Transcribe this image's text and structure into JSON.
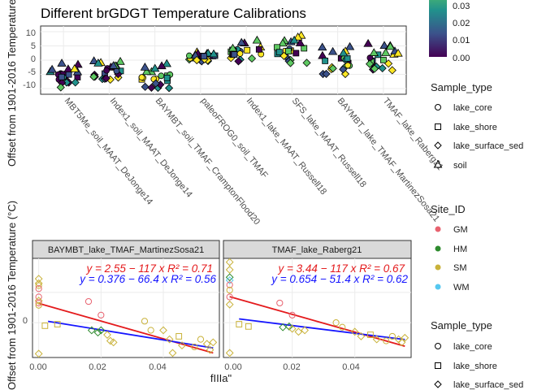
{
  "top_chart": {
    "title": "Different brGDGT Temperature Calibrations",
    "ylabel": "Offset from 1901-2016 Temperature (°C)",
    "yticks": [
      "10",
      "5",
      "0",
      "-5",
      "-10"
    ],
    "categories": [
      "MBT5Me_soil_MAAT_DeJonge14",
      "Index1_soil_MAAT_DeJonge14",
      "BAYMBT_soil_TMAF_CramptonFlood20",
      "paleoFROG0_soil_TMAF",
      "Index1_lake_MAAT_Russell18",
      "SFS_lake_MAAT_Russell18",
      "BAYMBT_lake_TMAF_MartinezSosa21",
      "TMAF_lake_Raberg21"
    ],
    "colorbar_ticks": [
      "0.03",
      "0.02",
      "0.01",
      "0.00"
    ]
  },
  "legend_sample_type_top": {
    "title": "Sample_type",
    "items": [
      "lake_core",
      "lake_shore",
      "lake_surface_sed",
      "soil"
    ]
  },
  "legend_site": {
    "title": "Site_ID",
    "items": [
      {
        "label": "GM",
        "color": "#e8626f"
      },
      {
        "label": "HM",
        "color": "#2e8b2e"
      },
      {
        "label": "SM",
        "color": "#c9b23a"
      },
      {
        "label": "WM",
        "color": "#56c8f0"
      }
    ]
  },
  "legend_sample_type_bottom": {
    "title": "Sample_type",
    "items": [
      "lake_core",
      "lake_shore",
      "lake_surface_sed"
    ]
  },
  "bottom_chart": {
    "ylabel": "Offset from 1901-2016 Temperature (°C)",
    "xlabel": "fIIIa\"",
    "panels": [
      {
        "strip": "BAYMBT_lake_TMAF_MartinezSosa21",
        "eq_red": "y = 2.55 − 117 x   R² = 0.71",
        "eq_blue": "y = 0.376 − 66.4 x   R² = 0.56"
      },
      {
        "strip": "TMAF_lake_Raberg21",
        "eq_red": "y = 3.44 − 117 x   R² = 0.67",
        "eq_blue": "y = 0.654 − 51.4 x   R² = 0.62"
      }
    ],
    "xticks": [
      "0.00",
      "0.02",
      "0.04"
    ],
    "ytick": "0"
  },
  "chart_data": [
    {
      "type": "scatter",
      "title": "Different brGDGT Temperature Calibrations",
      "ylabel": "Offset from 1901-2016 Temperature (°C)",
      "ylim": [
        -12,
        12
      ],
      "categories": [
        "MBT5Me_soil_MAAT_DeJonge14",
        "Index1_soil_MAAT_DeJonge14",
        "BAYMBT_soil_TMAF_CramptonFlood20",
        "paleoFROG0_soil_TMAF",
        "Index1_lake_MAAT_Russell18",
        "SFS_lake_MAAT_Russell18",
        "BAYMBT_lake_TMAF_MartinezSosa21",
        "TMAF_lake_Raberg21"
      ],
      "color_scale": {
        "range": [
          0,
          0.035
        ],
        "palette": "viridis"
      },
      "ranges_by_category": [
        {
          "min": -10,
          "max": -1
        },
        {
          "min": -7,
          "max": 0
        },
        {
          "min": -10,
          "max": -1
        },
        {
          "min": -0.5,
          "max": 3
        },
        {
          "min": -0.5,
          "max": 7
        },
        {
          "min": -1,
          "max": 9
        },
        {
          "min": -5,
          "max": 5
        },
        {
          "min": -4,
          "max": 6
        }
      ],
      "series": [
        {
          "name": "soil",
          "values": [
            -3,
            -4,
            -3,
            1.5,
            5,
            5,
            2,
            3
          ]
        },
        {
          "name": "lake_surface_sed",
          "values": [
            -8,
            -5.5,
            -8,
            1,
            1.5,
            1.5,
            -3,
            -2
          ]
        },
        {
          "name": "lake_core",
          "values": [
            -6,
            -4,
            -5,
            1,
            2,
            3,
            0,
            1
          ]
        },
        {
          "name": "lake_shore",
          "values": [
            -7,
            -5,
            -6,
            1,
            2,
            2,
            -1,
            0
          ]
        }
      ]
    },
    {
      "type": "scatter",
      "xlabel": "fIIIa\"",
      "ylabel": "Offset from 1901-2016 Temperature (°C)",
      "xlim": [
        -0.002,
        0.058
      ],
      "ylim": [
        -4.6,
        8.5
      ],
      "panels": [
        {
          "name": "BAYMBT_lake_TMAF_MartinezSosa21",
          "red_fit": {
            "intercept": 2.55,
            "slope": -117,
            "r2": 0.71
          },
          "blue_fit": {
            "intercept": 0.376,
            "slope": -66.4,
            "r2": 0.56
          },
          "points": [
            {
              "x": 0.0,
              "y": 5.8,
              "site": "SM",
              "sample": "lake_surface_sed"
            },
            {
              "x": 0.0,
              "y": 5.2,
              "site": "SM",
              "sample": "lake_surface_sed"
            },
            {
              "x": 0.0,
              "y": 4.9,
              "site": "SM",
              "sample": "lake_core"
            },
            {
              "x": 0.0,
              "y": 4.5,
              "site": "GM",
              "sample": "lake_core"
            },
            {
              "x": 0.0,
              "y": 3.4,
              "site": "GM",
              "sample": "lake_core"
            },
            {
              "x": 0.0,
              "y": 2.9,
              "site": "SM",
              "sample": "lake_surface_sed"
            },
            {
              "x": 0.0,
              "y": 2.6,
              "site": "GM",
              "sample": "lake_core"
            },
            {
              "x": 0.0,
              "y": 2.3,
              "site": "SM",
              "sample": "lake_core"
            },
            {
              "x": 0.0,
              "y": -4.1,
              "site": "SM",
              "sample": "lake_surface_sed"
            },
            {
              "x": 0.002,
              "y": -0.4,
              "site": "SM",
              "sample": "lake_shore"
            },
            {
              "x": 0.006,
              "y": -0.2,
              "site": "SM",
              "sample": "lake_shore"
            },
            {
              "x": 0.016,
              "y": 2.8,
              "site": "GM",
              "sample": "lake_core"
            },
            {
              "x": 0.02,
              "y": 1.0,
              "site": "GM",
              "sample": "lake_core"
            },
            {
              "x": 0.017,
              "y": -1.0,
              "site": "HM",
              "sample": "lake_surface_sed"
            },
            {
              "x": 0.019,
              "y": -1.3,
              "site": "HM",
              "sample": "lake_surface_sed"
            },
            {
              "x": 0.02,
              "y": -1.0,
              "site": "HM",
              "sample": "lake_surface_sed"
            },
            {
              "x": 0.022,
              "y": -1.6,
              "site": "SM",
              "sample": "lake_surface_sed"
            },
            {
              "x": 0.023,
              "y": -2.4,
              "site": "SM",
              "sample": "lake_surface_sed"
            },
            {
              "x": 0.024,
              "y": -2.6,
              "site": "SM",
              "sample": "lake_surface_sed"
            },
            {
              "x": 0.034,
              "y": 0.2,
              "site": "SM",
              "sample": "lake_core"
            },
            {
              "x": 0.036,
              "y": -1.0,
              "site": "SM",
              "sample": "lake_core"
            },
            {
              "x": 0.04,
              "y": -1.0,
              "site": "SM",
              "sample": "lake_surface_sed"
            },
            {
              "x": 0.042,
              "y": -2.2,
              "site": "SM",
              "sample": "lake_surface_sed"
            },
            {
              "x": 0.043,
              "y": -4.0,
              "site": "SM",
              "sample": "lake_surface_sed"
            },
            {
              "x": 0.045,
              "y": -1.8,
              "site": "SM",
              "sample": "lake_shore"
            },
            {
              "x": 0.046,
              "y": -3.0,
              "site": "SM",
              "sample": "lake_surface_sed"
            },
            {
              "x": 0.05,
              "y": -3.2,
              "site": "SM",
              "sample": "lake_core"
            },
            {
              "x": 0.052,
              "y": -2.2,
              "site": "SM",
              "sample": "lake_core"
            },
            {
              "x": 0.054,
              "y": -2.8,
              "site": "SM",
              "sample": "lake_surface_sed"
            },
            {
              "x": 0.055,
              "y": -3.6,
              "site": "SM",
              "sample": "lake_surface_sed"
            },
            {
              "x": 0.056,
              "y": -2.6,
              "site": "SM",
              "sample": "lake_surface_sed"
            }
          ]
        },
        {
          "name": "TMAF_lake_Raberg21",
          "red_fit": {
            "intercept": 3.44,
            "slope": -117,
            "r2": 0.67
          },
          "blue_fit": {
            "intercept": 0.654,
            "slope": -51.4,
            "r2": 0.62
          },
          "points": [
            {
              "x": 0.0,
              "y": 8.0,
              "site": "SM",
              "sample": "lake_surface_sed"
            },
            {
              "x": 0.0,
              "y": 7.0,
              "site": "SM",
              "sample": "lake_surface_sed"
            },
            {
              "x": 0.0,
              "y": 6.0,
              "site": "HM",
              "sample": "lake_surface_sed"
            },
            {
              "x": 0.0,
              "y": 5.6,
              "site": "WM",
              "sample": "lake_surface_sed"
            },
            {
              "x": 0.0,
              "y": 5.0,
              "site": "GM",
              "sample": "lake_core"
            },
            {
              "x": 0.0,
              "y": 4.3,
              "site": "SM",
              "sample": "lake_core"
            },
            {
              "x": 0.0,
              "y": 3.4,
              "site": "GM",
              "sample": "lake_core"
            },
            {
              "x": 0.0,
              "y": 2.4,
              "site": "SM",
              "sample": "lake_surface_sed"
            },
            {
              "x": 0.0,
              "y": -4.0,
              "site": "SM",
              "sample": "lake_surface_sed"
            },
            {
              "x": 0.003,
              "y": -0.2,
              "site": "SM",
              "sample": "lake_shore"
            },
            {
              "x": 0.006,
              "y": -0.5,
              "site": "SM",
              "sample": "lake_shore"
            },
            {
              "x": 0.016,
              "y": 2.6,
              "site": "GM",
              "sample": "lake_core"
            },
            {
              "x": 0.02,
              "y": 1.0,
              "site": "GM",
              "sample": "lake_core"
            },
            {
              "x": 0.017,
              "y": -0.6,
              "site": "HM",
              "sample": "lake_surface_sed"
            },
            {
              "x": 0.019,
              "y": -0.5,
              "site": "HM",
              "sample": "lake_surface_sed"
            },
            {
              "x": 0.02,
              "y": -0.8,
              "site": "SM",
              "sample": "lake_surface_sed"
            },
            {
              "x": 0.022,
              "y": -1.2,
              "site": "SM",
              "sample": "lake_surface_sed"
            },
            {
              "x": 0.024,
              "y": -1.0,
              "site": "SM",
              "sample": "lake_surface_sed"
            },
            {
              "x": 0.034,
              "y": 0.0,
              "site": "SM",
              "sample": "lake_core"
            },
            {
              "x": 0.036,
              "y": -0.6,
              "site": "SM",
              "sample": "lake_core"
            },
            {
              "x": 0.04,
              "y": -1.2,
              "site": "SM",
              "sample": "lake_surface_sed"
            },
            {
              "x": 0.042,
              "y": -1.8,
              "site": "SM",
              "sample": "lake_surface_sed"
            },
            {
              "x": 0.045,
              "y": -1.6,
              "site": "SM",
              "sample": "lake_shore"
            },
            {
              "x": 0.047,
              "y": -2.2,
              "site": "SM",
              "sample": "lake_surface_sed"
            },
            {
              "x": 0.05,
              "y": -2.4,
              "site": "SM",
              "sample": "lake_core"
            },
            {
              "x": 0.052,
              "y": -1.8,
              "site": "SM",
              "sample": "lake_core"
            },
            {
              "x": 0.054,
              "y": -2.2,
              "site": "SM",
              "sample": "lake_surface_sed"
            },
            {
              "x": 0.055,
              "y": -2.6,
              "site": "SM",
              "sample": "lake_surface_sed"
            },
            {
              "x": 0.056,
              "y": -2.0,
              "site": "SM",
              "sample": "lake_surface_sed"
            }
          ]
        }
      ]
    }
  ]
}
